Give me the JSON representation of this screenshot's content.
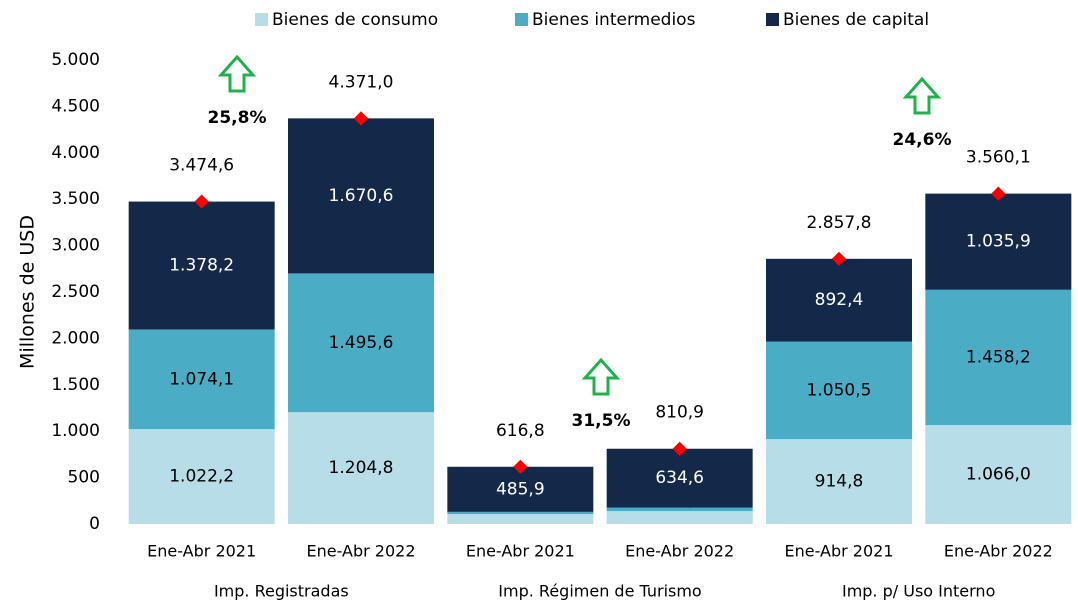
{
  "chart_data": {
    "type": "stacked_bar",
    "y_label": "Millones de USD",
    "categories": [
      "Ene-Abr 2021",
      "Ene-Abr 2022",
      "Ene-Abr 2021",
      "Ene-Abr 2022",
      "Ene-Abr 2021",
      "Ene-Abr 2022"
    ],
    "groups": [
      "Imp. Registradas",
      "Imp. Régimen de Turismo",
      "Imp. p/ Uso Interno"
    ],
    "series": [
      {
        "name": "Bienes de consumo",
        "color": "#b7dde8",
        "values": [
          1022.2,
          1204.8,
          107.4,
          138.8,
          914.8,
          1066.0
        ],
        "value_labels": [
          "1.022,2",
          "1.204,8",
          "107,4",
          "138,8",
          "914,8",
          "1.066,0"
        ]
      },
      {
        "name": "Bienes intermedios",
        "color": "#4bacc6",
        "values": [
          1074.1,
          1495.6,
          23.5,
          37.5,
          1050.5,
          1458.2
        ],
        "value_labels": [
          "1.074,1",
          "1.495,6",
          null,
          null,
          "1.050,5",
          "1.458,2"
        ]
      },
      {
        "name": "Bienes de capital",
        "color": "#14284a",
        "values": [
          1378.2,
          1670.6,
          485.9,
          634.6,
          892.4,
          1035.9
        ],
        "value_labels": [
          "1.378,2",
          "1.670,6",
          "485,9",
          "634,6",
          "892,4",
          "1.035,9"
        ]
      }
    ],
    "totals": {
      "color": "#ff0000",
      "values": [
        3474.6,
        4371.0,
        616.8,
        810.9,
        2857.8,
        3560.1
      ],
      "value_labels": [
        "3.474,6",
        "4.371,0",
        "616,8",
        "810,9",
        "2.857,8",
        "3.560,1"
      ]
    },
    "growth": {
      "color": "#1db34a",
      "values": [
        25.8,
        31.5,
        24.6
      ],
      "value_labels": [
        "25,8%",
        "31,5%",
        "24,6%"
      ]
    },
    "ylim": [
      0,
      5000
    ],
    "yticks": [
      0,
      500,
      {
        "value": 1000,
        "label": "1.000"
      },
      {
        "value": 1500,
        "label": "1.500"
      },
      {
        "value": 2000,
        "label": "2.000"
      },
      {
        "value": 2500,
        "label": "2.500"
      },
      {
        "value": 3000,
        "label": "3.000"
      },
      {
        "value": 3500,
        "label": "3.500"
      },
      {
        "value": 4000,
        "label": "4.000"
      },
      {
        "value": 4500,
        "label": "4.500"
      },
      {
        "value": 5000,
        "label": "5.000"
      }
    ],
    "legend": "top"
  }
}
